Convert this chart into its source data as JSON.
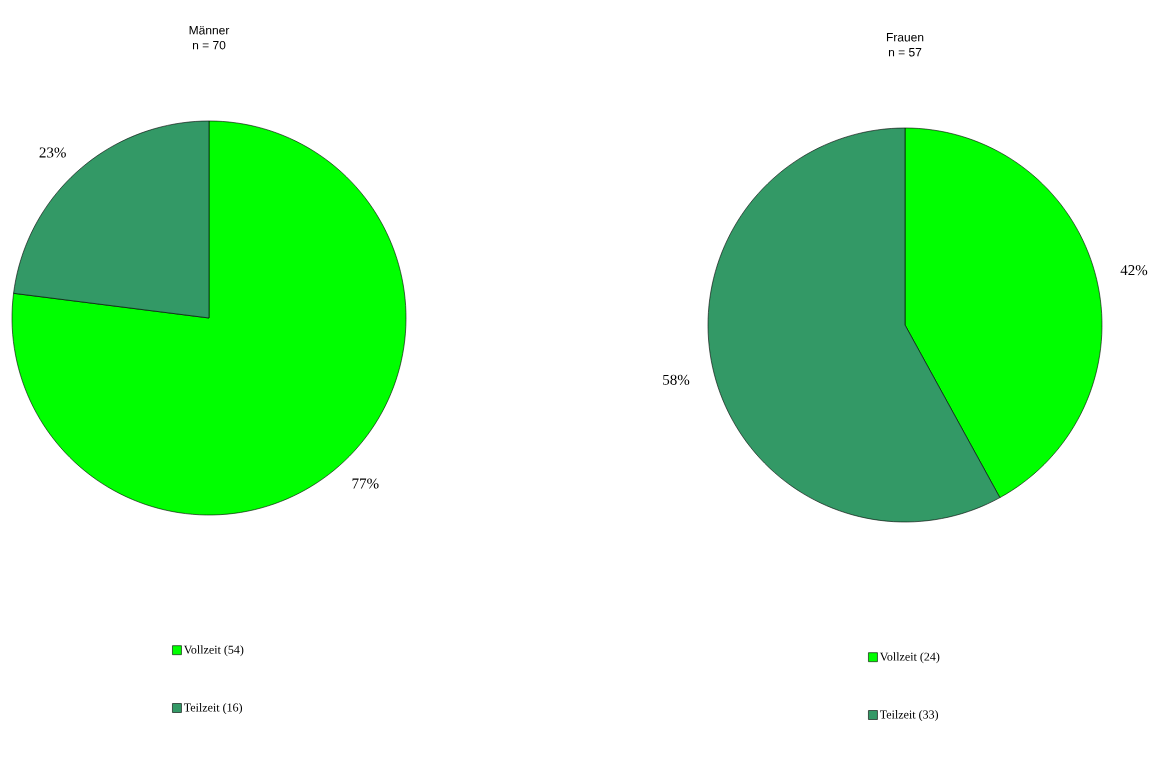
{
  "chart_data": [
    {
      "type": "pie",
      "title": "Männer",
      "subtitle": "n = 70",
      "categories": [
        "Vollzeit (54)",
        "Teilzeit (16)"
      ],
      "values": [
        77,
        23
      ],
      "colors": [
        "#00ff00",
        "#339966"
      ],
      "value_labels": [
        "77%",
        "23%"
      ],
      "legend": "bottom"
    },
    {
      "type": "pie",
      "title": "Frauen",
      "subtitle": "n = 57",
      "categories": [
        "Vollzeit (24)",
        "Teilzeit (33)"
      ],
      "values": [
        42,
        58
      ],
      "colors": [
        "#00ff00",
        "#339966"
      ],
      "value_labels": [
        "42%",
        "58%"
      ],
      "legend": "bottom"
    }
  ]
}
